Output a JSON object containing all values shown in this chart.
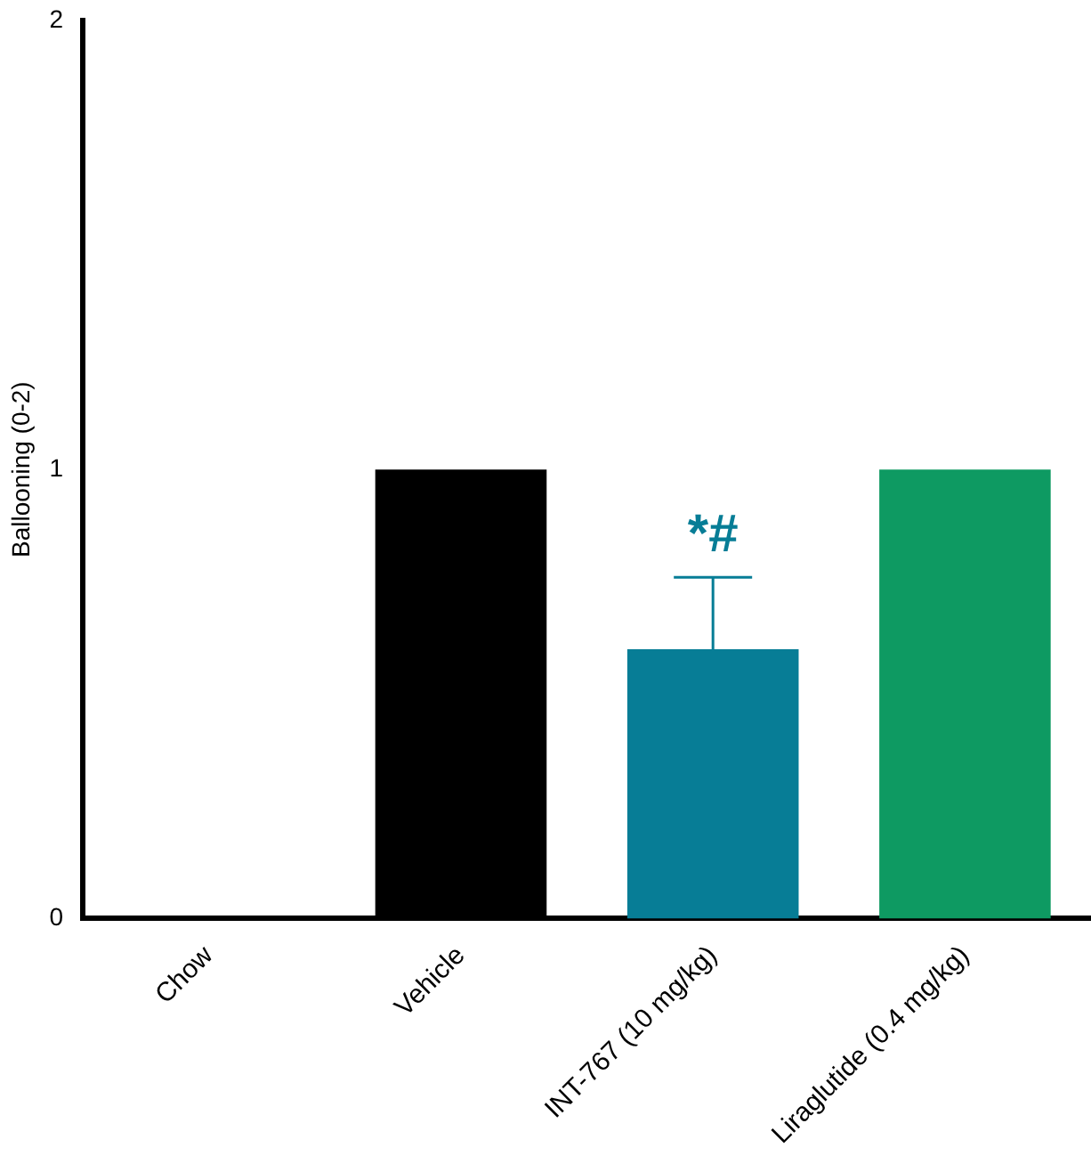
{
  "chart_data": {
    "type": "bar",
    "ylabel": "Ballooning (0-2)",
    "categories": [
      "Chow",
      "Vehicle",
      "INT-767 (10 mg/kg)",
      "Liraglutide (0.4 mg/kg)"
    ],
    "values": [
      0,
      1,
      0.6,
      1
    ],
    "colors": [
      "#000000",
      "#000000",
      "#077d96",
      "#0e9a62"
    ],
    "errors": [
      null,
      null,
      [
        0.6,
        0.76
      ],
      null
    ],
    "ylim": [
      0,
      2
    ],
    "yticks": [
      0,
      1,
      2
    ],
    "grid": false,
    "legend": false,
    "annotations": [
      "*#"
    ]
  }
}
